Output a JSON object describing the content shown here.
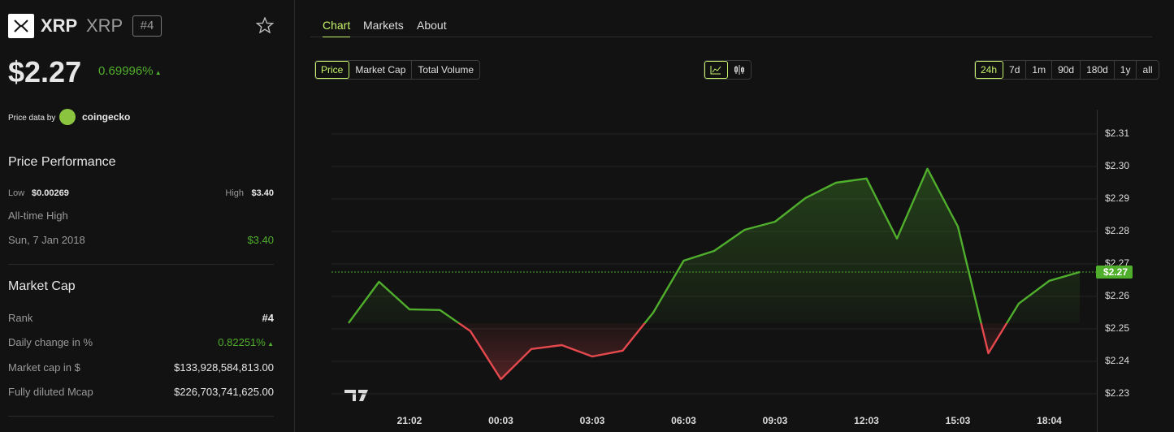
{
  "header": {
    "symbol": "XRP",
    "name": "XRP",
    "rank": "#4",
    "price": "$2.27",
    "change_24h": "0.69996%",
    "source_label": "Price data by",
    "source": "coingecko"
  },
  "price_performance": {
    "title": "Price Performance",
    "low_label": "Low",
    "low": "$0.00269",
    "high_label": "High",
    "high": "$3.40",
    "ath_label": "All-time High",
    "ath_date": "Sun, 7 Jan 2018",
    "ath": "$3.40"
  },
  "market_cap": {
    "title": "Market Cap",
    "rows": [
      [
        "Rank",
        "#4"
      ],
      [
        "Daily change in %",
        "0.82251%"
      ],
      [
        "Market cap in $",
        "$133,928,584,813.00"
      ],
      [
        "Fully diluted Mcap",
        "$226,703,741,625.00"
      ]
    ]
  },
  "tabs": [
    "Chart",
    "Markets",
    "About"
  ],
  "metrics": [
    "Price",
    "Market Cap",
    "Total Volume"
  ],
  "ranges": [
    "24h",
    "7d",
    "1m",
    "90d",
    "180d",
    "1y",
    "all"
  ],
  "chart_data": {
    "type": "line",
    "categories": [
      null,
      null,
      "21:02",
      null,
      null,
      "00:03",
      null,
      null,
      "03:03",
      null,
      null,
      "06:03",
      null,
      null,
      "09:03",
      null,
      null,
      "12:03",
      null,
      null,
      "15:03",
      null,
      null,
      "18:04",
      null
    ],
    "values": [
      2.2518,
      2.2645,
      2.256,
      2.2558,
      2.2493,
      2.2345,
      2.2438,
      2.245,
      2.2415,
      2.2433,
      2.255,
      2.271,
      2.274,
      2.2805,
      2.283,
      2.2903,
      2.295,
      2.2963,
      2.2778,
      2.2993,
      2.2815,
      2.2425,
      2.2578,
      2.2648,
      2.2675
    ],
    "up_color": "#4fae2c",
    "down_color": "#e5484d",
    "ylim": [
      2.225,
      2.3175
    ],
    "yticks": [
      {
        "value": 2.23,
        "label": "$2.23"
      },
      {
        "value": 2.24,
        "label": "$2.24"
      },
      {
        "value": 2.25,
        "label": "$2.25"
      },
      {
        "value": 2.26,
        "label": "$2.26"
      },
      {
        "value": 2.27,
        "label": "$2.27"
      },
      {
        "value": 2.28,
        "label": "$2.28"
      },
      {
        "value": 2.29,
        "label": "$2.29"
      },
      {
        "value": 2.3,
        "label": "$2.30"
      },
      {
        "value": 2.31,
        "label": "$2.31"
      }
    ],
    "grid": true,
    "price_line": {
      "value": 2.2675,
      "label": "$2.27"
    }
  }
}
